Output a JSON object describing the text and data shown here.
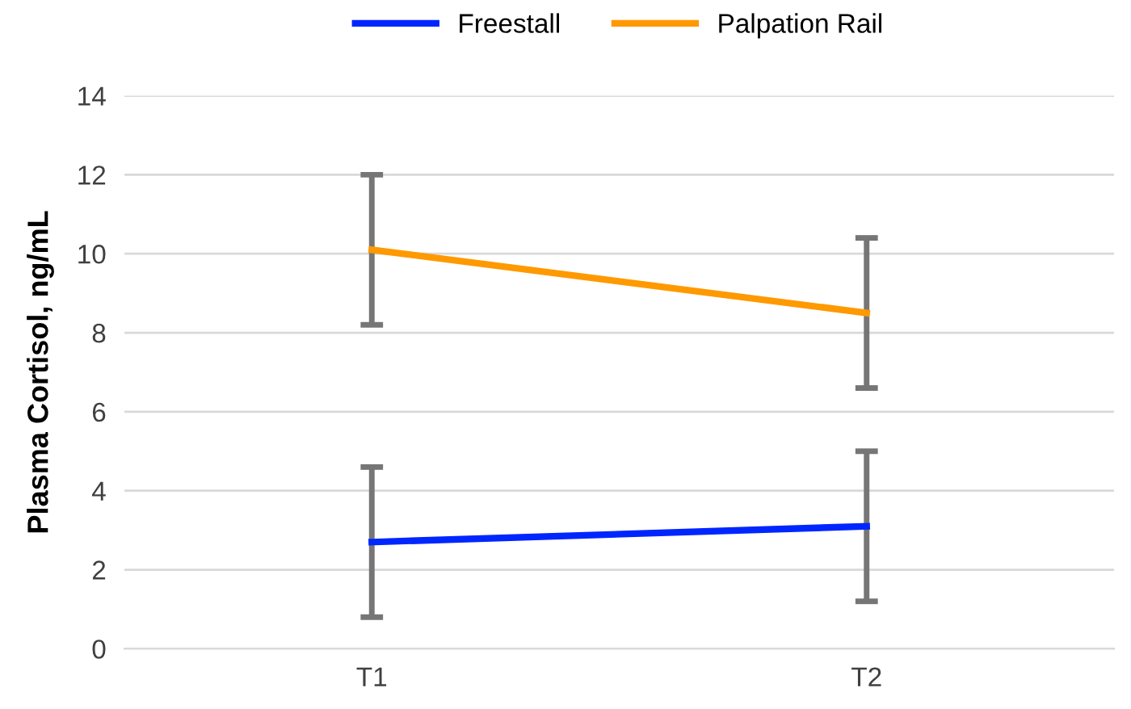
{
  "chart_data": {
    "type": "line",
    "ylabel": "Plasma Cortisol, ng/mL",
    "categories": [
      "T1",
      "T2"
    ],
    "series": [
      {
        "name": "Freestall",
        "color": "#0026ff",
        "values": [
          2.7,
          3.1
        ],
        "errors": [
          1.9,
          1.9
        ]
      },
      {
        "name": "Palpation Rail",
        "color": "#ff9900",
        "values": [
          10.1,
          8.5
        ],
        "errors": [
          1.9,
          1.9
        ]
      }
    ],
    "ylim": [
      0,
      14
    ],
    "yticks": [
      0,
      2,
      4,
      6,
      8,
      10,
      12,
      14
    ],
    "grid": "y",
    "legend": "top",
    "marker": "none",
    "line_style": "solid"
  }
}
